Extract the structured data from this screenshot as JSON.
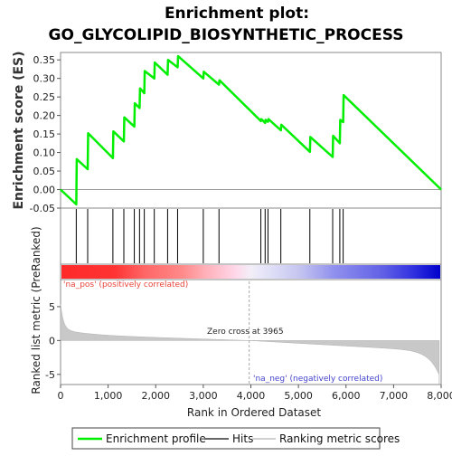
{
  "chart_data": {
    "type": "line",
    "title_line1": "Enrichment plot:",
    "title_line2": "GO_GLYCOLIPID_BIOSYNTHETIC_PROCESS",
    "ylabel_top": "Enrichment score (ES)",
    "ylabel_bottom": "Ranked list metric (PreRanked)",
    "xlabel": "Rank in Ordered Dataset",
    "xlim": [
      0,
      8000
    ],
    "ylim_top": [
      -0.05,
      0.37
    ],
    "ylim_bottom": [
      -6.5,
      9
    ],
    "x_ticks": [
      "0",
      "1,000",
      "2,000",
      "3,000",
      "4,000",
      "5,000",
      "6,000",
      "7,000",
      "8,000"
    ],
    "x_tick_values": [
      0,
      1000,
      2000,
      3000,
      4000,
      5000,
      6000,
      7000,
      8000
    ],
    "y_ticks_top": [
      "-0.05",
      "0.00",
      "0.05",
      "0.10",
      "0.15",
      "0.20",
      "0.25",
      "0.30",
      "0.35"
    ],
    "y_tick_values_top": [
      -0.05,
      0,
      0.05,
      0.1,
      0.15,
      0.2,
      0.25,
      0.3,
      0.35
    ],
    "y_ticks_bottom": [
      "-5",
      "0",
      "5"
    ],
    "y_tick_values_bottom": [
      -5,
      0,
      5
    ],
    "enrichment_profile": {
      "name": "Enrichment profile",
      "color": "#00ee00",
      "x": [
        0,
        330,
        340,
        570,
        580,
        1100,
        1110,
        1330,
        1340,
        1550,
        1560,
        1660,
        1670,
        1760,
        1770,
        1970,
        1980,
        2250,
        2260,
        2460,
        2470,
        3000,
        3010,
        3330,
        3340,
        4210,
        4220,
        4300,
        4310,
        4360,
        4370,
        4630,
        4640,
        5240,
        5250,
        5720,
        5730,
        5870,
        5880,
        5940,
        5950,
        8000
      ],
      "y": [
        0,
        -0.04,
        0.082,
        0.055,
        0.152,
        0.085,
        0.157,
        0.13,
        0.195,
        0.17,
        0.233,
        0.22,
        0.273,
        0.26,
        0.32,
        0.3,
        0.343,
        0.31,
        0.35,
        0.33,
        0.36,
        0.3,
        0.318,
        0.283,
        0.295,
        0.185,
        0.19,
        0.18,
        0.188,
        0.183,
        0.19,
        0.16,
        0.175,
        0.102,
        0.142,
        0.088,
        0.145,
        0.125,
        0.188,
        0.182,
        0.255,
        0.0
      ]
    },
    "hits": [
      330,
      570,
      1100,
      1330,
      1550,
      1660,
      1760,
      1970,
      2250,
      2460,
      3000,
      3330,
      4210,
      4300,
      4360,
      4630,
      5240,
      5720,
      5870,
      5940
    ],
    "hits_label": "Hits",
    "ranking_metric_label": "Ranking metric scores",
    "zero_cross_label": "Zero cross at 3965",
    "zero_cross": 3965,
    "pos_label": "'na_pos' (positively correlated)",
    "neg_label": "'na_neg' (negatively correlated)",
    "colors": {
      "profile": "#00ee00",
      "hit": "#000000",
      "metric_fill": "#c8c8c8",
      "pos_text": "#e8443a",
      "neg_text": "#4444cc",
      "heat_red": "#ff0000",
      "heat_blue": "#0000ff"
    }
  }
}
